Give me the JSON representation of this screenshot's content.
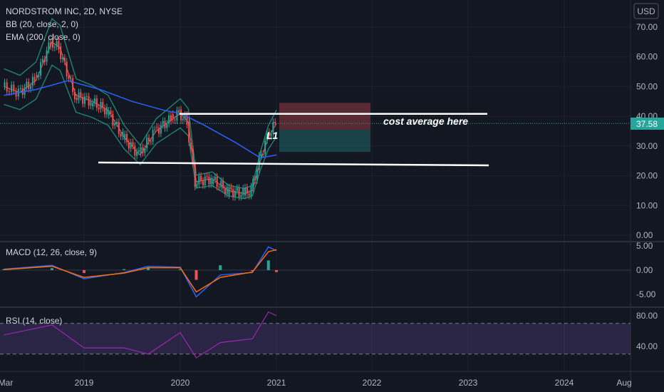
{
  "header": {
    "symbol_line": "NORDSTROM INC, 2D, NYSE",
    "indicator_bb": "BB (20, close, 2, 0)",
    "indicator_ema": "EMA (200, close, 0)",
    "currency": "USD"
  },
  "macd_pane": {
    "label": "MACD (12, 26, close, 9)"
  },
  "rsi_pane": {
    "label": "RSI (14, close)"
  },
  "annotations": {
    "cost_average_text": "cost average here",
    "l1_text": "L1"
  },
  "last_price_label": "37.58",
  "colors": {
    "background": "#131722",
    "up": "#26a69a",
    "down": "#ef5350",
    "bb": "#1e7d6e",
    "ema": "#2962ff",
    "macd": "#2962ff",
    "signal": "#ff6d00",
    "rsi": "#9c27b0",
    "price_tag": "#26a69a"
  },
  "chart_data": [
    {
      "type": "line",
      "pane": "price",
      "title": "NORDSTROM INC, 2D, NYSE",
      "y_ticks": [
        "70.00",
        "60.00",
        "50.00",
        "40.00",
        "30.00",
        "20.00",
        "10.00",
        "0.00"
      ],
      "ylim": [
        0,
        70
      ],
      "x_ticks": [
        "Mar",
        "2019",
        "2020",
        "2021",
        "2022",
        "2023",
        "2024",
        "Aug"
      ],
      "series": [
        {
          "name": "close",
          "x": [
            "2018-03",
            "2018-05",
            "2018-07",
            "2018-09",
            "2018-10",
            "2018-12",
            "2019-02",
            "2019-04",
            "2019-06",
            "2019-08",
            "2019-10",
            "2019-12",
            "2020-01",
            "2020-02",
            "2020-03",
            "2020-05",
            "2020-07",
            "2020-09",
            "2020-10",
            "2020-11",
            "2020-12",
            "2021-01"
          ],
          "values": [
            50,
            48,
            52,
            65,
            63,
            47,
            45,
            42,
            33,
            27,
            35,
            39,
            41,
            38,
            18,
            19,
            15,
            14,
            15,
            25,
            33,
            37.58
          ]
        },
        {
          "name": "EMA 200",
          "x": [
            "2018-03",
            "2018-07",
            "2018-11",
            "2019-03",
            "2019-07",
            "2019-11",
            "2020-01",
            "2020-04",
            "2020-08",
            "2020-11",
            "2021-01"
          ],
          "values": [
            47,
            49,
            52,
            49,
            45,
            42,
            41,
            37,
            31,
            26,
            27
          ]
        }
      ],
      "horizontal_levels": [
        40.8,
        24.2
      ],
      "last_price": 37.58,
      "position_box": {
        "entry": 35.5,
        "stop_top": 44.5,
        "target_bottom": 28.0
      }
    },
    {
      "type": "bar",
      "pane": "macd",
      "title": "MACD (12, 26, close, 9)",
      "y_ticks": [
        "5.00",
        "0.00",
        "-5.00"
      ],
      "ylim": [
        -7,
        6
      ],
      "series": [
        {
          "name": "MACD",
          "x": [
            "2018-03",
            "2018-09",
            "2019-01",
            "2019-06",
            "2019-09",
            "2020-01",
            "2020-03",
            "2020-06",
            "2020-10",
            "2020-12",
            "2021-01"
          ],
          "values": [
            0.2,
            1.0,
            -1.8,
            -0.5,
            0.8,
            0.6,
            -5.5,
            -1.0,
            -0.5,
            4.8,
            4.0
          ]
        },
        {
          "name": "signal",
          "x": [
            "2018-03",
            "2018-09",
            "2019-01",
            "2019-06",
            "2019-09",
            "2020-01",
            "2020-03",
            "2020-06",
            "2020-10",
            "2020-12",
            "2021-01"
          ],
          "values": [
            0.1,
            0.8,
            -1.5,
            -0.6,
            0.5,
            0.5,
            -4.5,
            -1.5,
            -0.4,
            3.8,
            4.2
          ]
        }
      ]
    },
    {
      "type": "line",
      "pane": "rsi",
      "title": "RSI (14, close)",
      "y_ticks": [
        "80.00",
        "40.00"
      ],
      "ylim": [
        20,
        90
      ],
      "band": [
        70,
        30
      ],
      "series": [
        {
          "name": "RSI",
          "x": [
            "2018-03",
            "2018-09",
            "2019-01",
            "2019-06",
            "2019-09",
            "2020-01",
            "2020-03",
            "2020-06",
            "2020-10",
            "2020-12",
            "2021-01"
          ],
          "values": [
            55,
            68,
            38,
            38,
            30,
            58,
            25,
            45,
            50,
            85,
            80
          ]
        }
      ]
    }
  ]
}
